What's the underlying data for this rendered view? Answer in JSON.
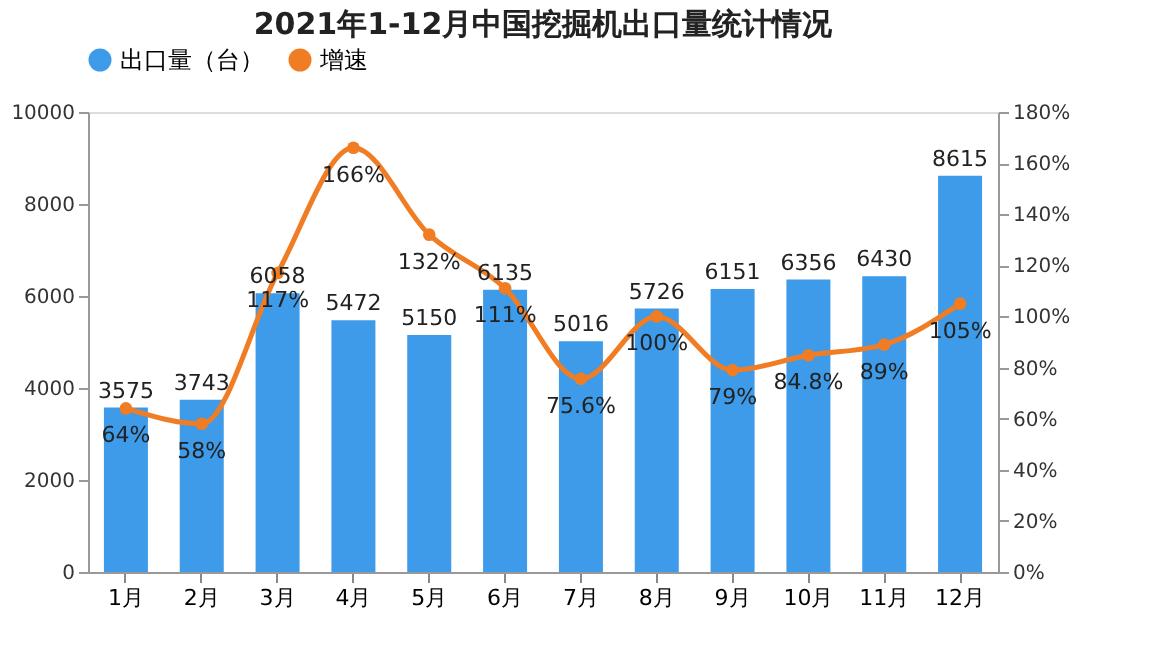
{
  "chart_data": {
    "type": "bar",
    "title": "2021年1-12月中国挖掘机出口量统计情况",
    "categories": [
      "1月",
      "2月",
      "3月",
      "4月",
      "5月",
      "6月",
      "7月",
      "8月",
      "9月",
      "10月",
      "11月",
      "12月"
    ],
    "series": [
      {
        "name": "出口量（台）",
        "color": "#3d9be9",
        "values": [
          3575,
          3743,
          6058,
          5472,
          5150,
          6135,
          5016,
          5726,
          6151,
          6356,
          6430,
          8615
        ]
      },
      {
        "name": "增速",
        "type": "line",
        "axis": "y2",
        "color": "#f07d24",
        "values": [
          64,
          58,
          117,
          166,
          132,
          111,
          75.6,
          100,
          79,
          84.8,
          89,
          105
        ],
        "value_labels": [
          "64%",
          "58%",
          "117%",
          "166%",
          "132%",
          "111%",
          "75.6%",
          "100%",
          "79%",
          "84.8%",
          "89%",
          "105%"
        ]
      }
    ],
    "data_labels": true,
    "ylim": [
      0,
      10000
    ],
    "yticks": [
      0,
      2000,
      4000,
      6000,
      8000,
      10000
    ],
    "y2lim": [
      0,
      180
    ],
    "y2ticks": [
      {
        "value": 0,
        "label": "0%"
      },
      {
        "value": 20,
        "label": "20%"
      },
      {
        "value": 40,
        "label": "40%"
      },
      {
        "value": 60,
        "label": "60%"
      },
      {
        "value": 80,
        "label": "80%"
      },
      {
        "value": 100,
        "label": "100%"
      },
      {
        "value": 120,
        "label": "120%"
      },
      {
        "value": 140,
        "label": "140%"
      },
      {
        "value": 160,
        "label": "160%"
      },
      {
        "value": 180,
        "label": "180%"
      }
    ],
    "legend": "top",
    "marker": "circle",
    "line_style": "solid",
    "grid": false
  }
}
